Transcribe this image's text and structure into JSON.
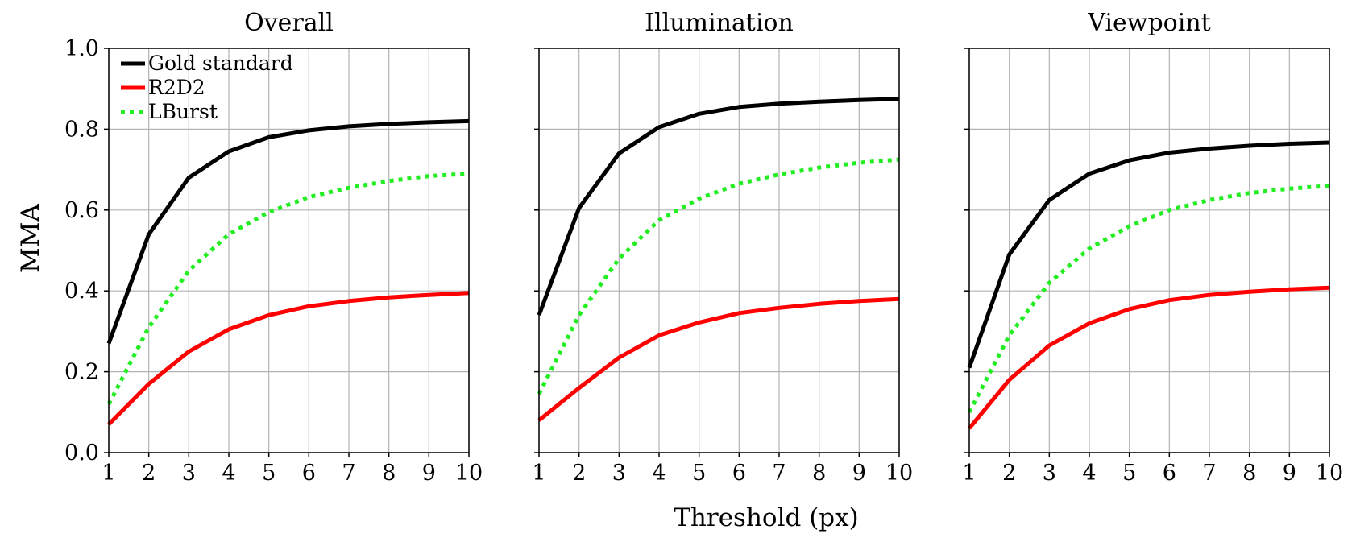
{
  "chart_data": [
    {
      "type": "line",
      "title": "Overall",
      "xlabel": "",
      "ylabel": "MMA",
      "x": [
        1,
        2,
        3,
        4,
        5,
        6,
        7,
        8,
        9,
        10
      ],
      "xlim": [
        1,
        10
      ],
      "ylim": [
        0.0,
        1.0
      ],
      "xticks": [
        "1",
        "2",
        "3",
        "4",
        "5",
        "6",
        "7",
        "8",
        "9",
        "10"
      ],
      "yticks": [
        "0.0",
        "0.2",
        "0.4",
        "0.6",
        "0.8",
        "1.0"
      ],
      "grid": true,
      "legend": "top-left",
      "series": [
        {
          "name": "Gold standard",
          "color": "#000000",
          "style": "solid",
          "values": [
            0.27,
            0.54,
            0.68,
            0.745,
            0.78,
            0.797,
            0.807,
            0.813,
            0.817,
            0.82
          ]
        },
        {
          "name": "R2D2",
          "color": "#ff0000",
          "style": "solid",
          "values": [
            0.07,
            0.17,
            0.25,
            0.305,
            0.34,
            0.362,
            0.375,
            0.384,
            0.39,
            0.395
          ]
        },
        {
          "name": "LBurst",
          "color": "#22ee22",
          "style": "dotted",
          "values": [
            0.12,
            0.31,
            0.45,
            0.54,
            0.595,
            0.632,
            0.655,
            0.672,
            0.684,
            0.69
          ]
        }
      ]
    },
    {
      "type": "line",
      "title": "Illumination",
      "xlabel": "Threshold (px)",
      "ylabel": "",
      "x": [
        1,
        2,
        3,
        4,
        5,
        6,
        7,
        8,
        9,
        10
      ],
      "xlim": [
        1,
        10
      ],
      "ylim": [
        0.0,
        1.0
      ],
      "xticks": [
        "1",
        "2",
        "3",
        "4",
        "5",
        "6",
        "7",
        "8",
        "9",
        "10"
      ],
      "yticks": [
        "0.0",
        "0.2",
        "0.4",
        "0.6",
        "0.8",
        "1.0"
      ],
      "grid": true,
      "series": [
        {
          "name": "Gold standard",
          "color": "#000000",
          "style": "solid",
          "values": [
            0.34,
            0.605,
            0.74,
            0.805,
            0.838,
            0.855,
            0.863,
            0.868,
            0.872,
            0.875
          ]
        },
        {
          "name": "R2D2",
          "color": "#ff0000",
          "style": "solid",
          "values": [
            0.08,
            0.16,
            0.235,
            0.29,
            0.322,
            0.345,
            0.358,
            0.368,
            0.375,
            0.38
          ]
        },
        {
          "name": "LBurst",
          "color": "#22ee22",
          "style": "dotted",
          "values": [
            0.145,
            0.34,
            0.48,
            0.575,
            0.628,
            0.665,
            0.688,
            0.705,
            0.717,
            0.725
          ]
        }
      ]
    },
    {
      "type": "line",
      "title": "Viewpoint",
      "xlabel": "",
      "ylabel": "",
      "x": [
        1,
        2,
        3,
        4,
        5,
        6,
        7,
        8,
        9,
        10
      ],
      "xlim": [
        1,
        10
      ],
      "ylim": [
        0.0,
        1.0
      ],
      "xticks": [
        "1",
        "2",
        "3",
        "4",
        "5",
        "6",
        "7",
        "8",
        "9",
        "10"
      ],
      "yticks": [
        "0.0",
        "0.2",
        "0.4",
        "0.6",
        "0.8",
        "1.0"
      ],
      "grid": true,
      "series": [
        {
          "name": "Gold standard",
          "color": "#000000",
          "style": "solid",
          "values": [
            0.21,
            0.49,
            0.625,
            0.69,
            0.723,
            0.742,
            0.752,
            0.759,
            0.764,
            0.767
          ]
        },
        {
          "name": "R2D2",
          "color": "#ff0000",
          "style": "solid",
          "values": [
            0.06,
            0.18,
            0.265,
            0.32,
            0.355,
            0.377,
            0.39,
            0.398,
            0.404,
            0.408
          ]
        },
        {
          "name": "LBurst",
          "color": "#22ee22",
          "style": "dotted",
          "values": [
            0.1,
            0.29,
            0.42,
            0.505,
            0.56,
            0.6,
            0.625,
            0.642,
            0.653,
            0.66
          ]
        }
      ]
    }
  ]
}
